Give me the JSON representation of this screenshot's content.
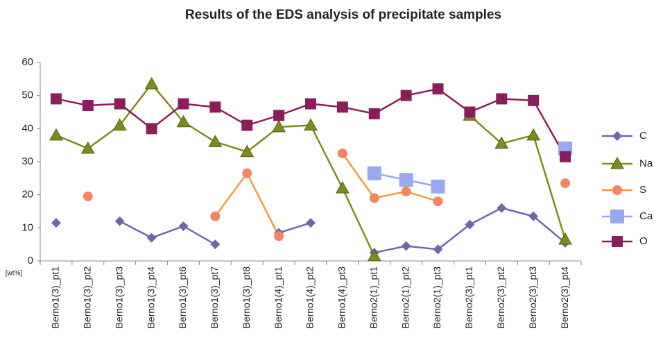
{
  "chart_data": {
    "type": "line",
    "title": "Results of the EDS analysis of precipitate samples",
    "y_label": "[wt%]",
    "categories": [
      "Berno1(3)_pt1",
      "Berno1(3)_pt2",
      "Berno1(3)_pt3",
      "Berno1(3)_pt4",
      "Berno1(3)_pt6",
      "Berno1(3)_pt7",
      "Berno1(3)_pt8",
      "Berno1(4)_pt1",
      "Berno1(4)_pt2",
      "Berno1(4)_pt3",
      "Berno2(1)_pt1",
      "Berno2(1)_pt2",
      "Berno2(1)_pt3",
      "Berno2(3)_pt1",
      "Berno2(3)_pt2",
      "Berno2(3)_pt3",
      "Berno2(3)_pt4"
    ],
    "series": [
      {
        "name": "C",
        "color": "#6b69a8",
        "marker": "diamond",
        "values": [
          11.5,
          null,
          12,
          7,
          10.5,
          5,
          null,
          8.5,
          11.5,
          null,
          2.5,
          4.5,
          3.5,
          11,
          16,
          13.5,
          5.5
        ]
      },
      {
        "name": "Na",
        "color": "#7f8a1f",
        "marker": "triangle",
        "values": [
          38,
          34,
          41,
          53.5,
          42,
          36,
          33,
          40.5,
          41,
          22,
          1.5,
          null,
          null,
          44,
          35.5,
          38,
          6.5
        ]
      },
      {
        "name": "S",
        "color": "#f39a3c",
        "marker": "circle",
        "values": [
          null,
          19.5,
          null,
          null,
          null,
          13.5,
          26.5,
          7.5,
          null,
          32.5,
          19,
          21,
          18,
          null,
          null,
          null,
          23.5
        ]
      },
      {
        "name": "Ca",
        "color": "#9aa8f0",
        "marker": "square",
        "values": [
          null,
          null,
          null,
          null,
          null,
          null,
          null,
          null,
          null,
          null,
          26.5,
          24.5,
          22.5,
          null,
          null,
          null,
          34
        ]
      },
      {
        "name": "O",
        "color": "#8b1e5a",
        "marker": "square",
        "values": [
          49,
          47,
          47.5,
          40,
          47.5,
          46.5,
          41,
          44,
          47.5,
          46.5,
          44.5,
          50,
          52,
          45,
          49,
          48.5,
          31.5
        ]
      }
    ],
    "ylim": [
      0,
      60
    ],
    "yticks": [
      0,
      10,
      20,
      30,
      40,
      50,
      60
    ],
    "grid": false,
    "legend": "right"
  }
}
